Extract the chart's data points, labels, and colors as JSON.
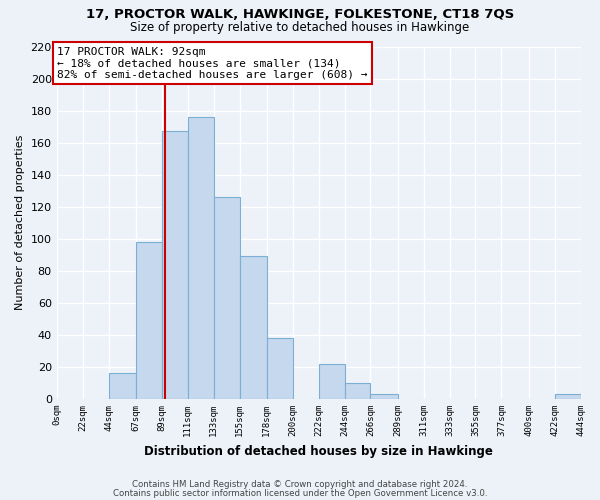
{
  "title1": "17, PROCTOR WALK, HAWKINGE, FOLKESTONE, CT18 7QS",
  "title2": "Size of property relative to detached houses in Hawkinge",
  "xlabel": "Distribution of detached houses by size in Hawkinge",
  "ylabel": "Number of detached properties",
  "bin_edges": [
    0,
    22,
    44,
    67,
    89,
    111,
    133,
    155,
    178,
    200,
    222,
    244,
    266,
    289,
    311,
    333,
    355,
    377,
    400,
    422,
    444
  ],
  "bin_labels": [
    "0sqm",
    "22sqm",
    "44sqm",
    "67sqm",
    "89sqm",
    "111sqm",
    "133sqm",
    "155sqm",
    "178sqm",
    "200sqm",
    "222sqm",
    "244sqm",
    "266sqm",
    "289sqm",
    "311sqm",
    "333sqm",
    "355sqm",
    "377sqm",
    "400sqm",
    "422sqm",
    "444sqm"
  ],
  "counts": [
    0,
    0,
    16,
    98,
    167,
    176,
    126,
    89,
    38,
    0,
    22,
    10,
    3,
    0,
    0,
    0,
    0,
    0,
    0,
    3
  ],
  "bar_color": "#c5d8ed",
  "bar_edge_color": "#7bafd4",
  "property_size": 92,
  "vline_color": "#cc0000",
  "annotation_line1": "17 PROCTOR WALK: 92sqm",
  "annotation_line2": "← 18% of detached houses are smaller (134)",
  "annotation_line3": "82% of semi-detached houses are larger (608) →",
  "annotation_box_color": "white",
  "annotation_box_edge": "#cc0000",
  "ylim": [
    0,
    220
  ],
  "yticks": [
    0,
    20,
    40,
    60,
    80,
    100,
    120,
    140,
    160,
    180,
    200,
    220
  ],
  "footer1": "Contains HM Land Registry data © Crown copyright and database right 2024.",
  "footer2": "Contains public sector information licensed under the Open Government Licence v3.0.",
  "bg_color": "#edf2f9",
  "plot_bg_color": "#edf2f9",
  "grid_color": "white"
}
